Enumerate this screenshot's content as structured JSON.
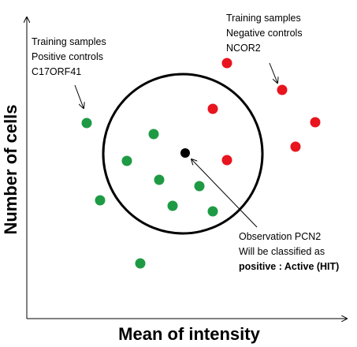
{
  "axes": {
    "x_title": "Mean of intensity",
    "y_title": "Number of cells"
  },
  "labels": {
    "positive": [
      "Training samples",
      "Positive controls",
      "C17ORF41"
    ],
    "negative": [
      "Training samples",
      "Negative controls",
      "NCOR2"
    ],
    "observation": [
      "Observation PCN2",
      "Will be classified as"
    ],
    "classification": "positive : Active (HIT)"
  },
  "colors": {
    "positive_point": "#1f9a44",
    "negative_point": "#e8141e",
    "observation_point": "#000000",
    "classification_text": "#e8141e"
  },
  "points": {
    "positive": 10,
    "negative": 6,
    "observation": 1
  }
}
